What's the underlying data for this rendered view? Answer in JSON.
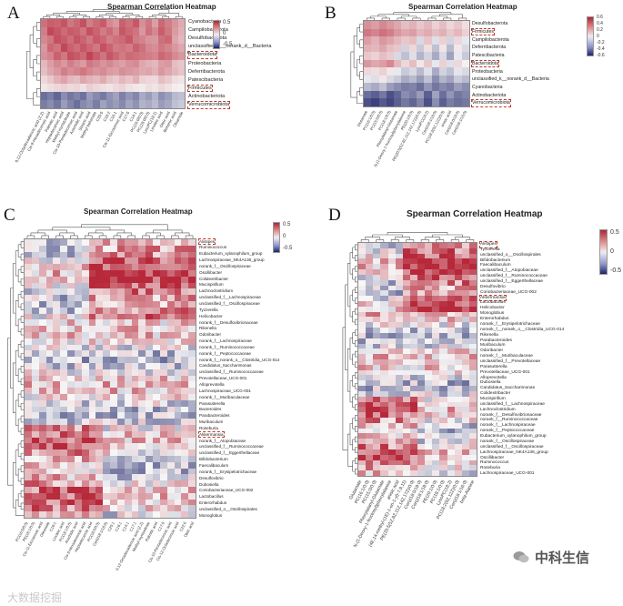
{
  "colors": {
    "pos": "#b2182b",
    "neg": "#1d2368",
    "neutral": "#f7f7f7",
    "highlight": "#c0392b"
  },
  "panels": {
    "A": {
      "label": "A",
      "title": "Spearman Correlation Heatmap",
      "legend": {
        "ticks": [
          "0.5",
          "0",
          "-0.5"
        ]
      },
      "rows": [
        "Cyanobacteria",
        "Campilobacterota",
        "Desulfobacterota",
        "unclassified_k__norank_d__Bacteria",
        "Bacteroidota",
        "Proteobacteria",
        "Deferribacterota",
        "Patescibacteria",
        "Firmicutes",
        "Actinobacteriota",
        "Verrucomicrobiota"
      ],
      "highlight_rows": [
        4,
        8,
        10
      ],
      "columns": [
        "9,12-Octadecadienoic acid (Z,Z)",
        "Cis-9-Hexadecenoic acid",
        "Palmitic acid",
        "Heptadecanoic acid",
        "Methyl myristoleate",
        "Cis-10-Pentadecenoic acid",
        "Arachidic acid",
        "Stearic acid",
        "Methyl behenate",
        "C20:0",
        "C18:2",
        "C16:1",
        "Cis-11-Eicosenoic acid",
        "C17:0",
        "C14:1",
        "PC(16:0/0:0)",
        "PC(18:0/0:0)",
        "LysoPC(18:1)",
        "Linoleic acid",
        "Oleic acid",
        "Behenic acid",
        "Oleamide"
      ],
      "values": [
        [
          0.42,
          0.48,
          0.46,
          0.51,
          0.4,
          0.45,
          0.52,
          0.38,
          0.44,
          0.49,
          0.35,
          0.3,
          0.47,
          0.42,
          0.5,
          0.33,
          0.4,
          0.28,
          0.45,
          0.38,
          0.31,
          0.24
        ],
        [
          0.38,
          0.55,
          0.5,
          0.44,
          0.49,
          0.47,
          0.41,
          0.52,
          0.46,
          0.39,
          0.44,
          0.36,
          0.5,
          0.45,
          0.41,
          0.3,
          0.42,
          0.35,
          0.48,
          0.4,
          0.29,
          0.22
        ],
        [
          0.35,
          0.4,
          0.52,
          0.48,
          0.43,
          0.51,
          0.46,
          0.4,
          0.49,
          0.45,
          0.38,
          0.42,
          0.44,
          0.5,
          0.39,
          0.36,
          0.31,
          0.3,
          0.42,
          0.45,
          0.26,
          0.2
        ],
        [
          0.3,
          0.45,
          0.41,
          0.55,
          0.47,
          0.43,
          0.5,
          0.45,
          0.4,
          0.52,
          0.46,
          0.39,
          0.41,
          0.38,
          0.47,
          0.42,
          0.35,
          0.33,
          0.4,
          0.36,
          0.3,
          0.25
        ],
        [
          0.32,
          0.36,
          0.47,
          0.4,
          0.52,
          0.49,
          0.44,
          0.56,
          0.48,
          0.41,
          0.5,
          0.45,
          0.39,
          0.44,
          0.42,
          0.4,
          0.38,
          0.36,
          0.45,
          0.41,
          0.34,
          0.3
        ],
        [
          0.2,
          0.28,
          0.35,
          0.3,
          0.38,
          0.33,
          0.29,
          0.4,
          0.36,
          0.31,
          0.35,
          0.3,
          0.27,
          0.32,
          0.34,
          0.25,
          0.22,
          0.2,
          0.28,
          0.3,
          0.18,
          0.15
        ],
        [
          0.18,
          0.25,
          0.3,
          0.38,
          0.33,
          0.36,
          0.4,
          0.35,
          0.31,
          0.34,
          0.29,
          0.27,
          0.33,
          0.3,
          0.28,
          0.24,
          0.26,
          0.22,
          0.3,
          0.25,
          0.2,
          0.16
        ],
        [
          0.1,
          0.15,
          0.22,
          0.26,
          0.2,
          0.18,
          0.25,
          0.21,
          0.19,
          0.24,
          0.17,
          0.14,
          0.2,
          0.16,
          0.22,
          0.12,
          0.1,
          0.09,
          0.18,
          0.14,
          0.08,
          0.06
        ],
        [
          0.05,
          0.08,
          0.1,
          0.12,
          0.09,
          0.11,
          0.07,
          0.13,
          0.1,
          0.08,
          0.06,
          0.09,
          0.11,
          0.07,
          0.05,
          0.04,
          0.08,
          0.06,
          0.1,
          0.07,
          0.03,
          0.02
        ],
        [
          -0.45,
          -0.4,
          -0.48,
          -0.35,
          -0.42,
          -0.38,
          -0.44,
          -0.3,
          -0.36,
          -0.41,
          -0.33,
          -0.28,
          -0.39,
          -0.32,
          -0.37,
          -0.25,
          -0.3,
          -0.22,
          -0.34,
          -0.29,
          -0.2,
          -0.18
        ],
        [
          -0.4,
          -0.35,
          -0.42,
          -0.3,
          -0.38,
          -0.45,
          -0.36,
          -0.32,
          -0.4,
          -0.28,
          -0.34,
          -0.3,
          -0.36,
          -0.27,
          -0.33,
          -0.22,
          -0.25,
          -0.2,
          -0.3,
          -0.26,
          -0.18,
          -0.15
        ]
      ]
    },
    "B": {
      "label": "B",
      "title": "Spearman Correlation Heatmap",
      "legend": {
        "ticks": [
          "0.6",
          "0.4",
          "0.2",
          "0",
          "-0.2",
          "-0.4",
          "-0.6"
        ]
      },
      "rows": [
        "Desulfobacterota",
        "Firmicutes",
        "Campilobacterota",
        "Deferribacterota",
        "Patescibacteria",
        "Bacteroidota",
        "Proteobacteria",
        "unclassified_k__norank_d__Bacteria",
        "Cyanobacteria",
        "Actinobacteriota",
        "Verrucomicrobiota"
      ],
      "highlight_rows": [
        1,
        5,
        10
      ],
      "columns": [
        "Glutamate",
        "PC(16:1/0:0)",
        "PC(15:0/0:0)",
        "PC(18:1/0:0)",
        "Phenylalanyl-Glutamate",
        "N-(1-Deoxy-1-fructosyl)phenylalanine",
        "PE(20:1/0:0)",
        "PE(20:5(5Z,8Z,11Z,14Z,17Z)/0:0)",
        "LysoPC(18:2)",
        "Cer(d18:1/18:0)",
        "PC(18:2(9Z,12Z)/0:0)",
        "anisic acid",
        "Cer(d18:0/18:0)",
        "Cer(d18:1/16:0)"
      ],
      "values": [
        [
          0.32,
          0.28,
          0.35,
          0.3,
          0.25,
          0.18,
          0.22,
          0.15,
          0.2,
          0.12,
          0.18,
          0.1,
          0.15,
          0.08
        ],
        [
          0.4,
          0.36,
          0.42,
          0.38,
          0.3,
          0.25,
          0.28,
          0.2,
          0.24,
          0.18,
          0.22,
          0.15,
          0.2,
          0.12
        ],
        [
          0.28,
          0.22,
          0.3,
          0.26,
          0.2,
          0.15,
          0.18,
          -0.1,
          0.16,
          -0.08,
          0.12,
          -0.12,
          0.1,
          -0.05
        ],
        [
          0.22,
          0.2,
          0.25,
          0.18,
          0.15,
          -0.12,
          0.1,
          -0.15,
          0.08,
          -0.18,
          0.06,
          -0.2,
          0.05,
          -0.1
        ],
        [
          0.15,
          0.12,
          0.18,
          0.14,
          -0.1,
          -0.18,
          -0.08,
          -0.22,
          -0.12,
          -0.25,
          -0.1,
          -0.28,
          -0.05,
          -0.15
        ],
        [
          0.3,
          0.25,
          0.28,
          0.35,
          0.2,
          0.1,
          0.18,
          0.05,
          0.15,
          -0.05,
          0.12,
          -0.08,
          0.1,
          0.02
        ],
        [
          0.1,
          0.08,
          0.12,
          0.05,
          -0.05,
          -0.15,
          -0.1,
          -0.2,
          -0.08,
          -0.25,
          -0.12,
          -0.18,
          -0.06,
          -0.1
        ],
        [
          -0.05,
          -0.08,
          0.05,
          -0.1,
          -0.15,
          -0.25,
          -0.2,
          -0.3,
          -0.18,
          -0.35,
          -0.22,
          -0.28,
          -0.15,
          -0.2
        ],
        [
          -0.2,
          -0.25,
          -0.18,
          -0.3,
          -0.35,
          -0.4,
          -0.38,
          -0.45,
          -0.32,
          -0.42,
          -0.36,
          -0.4,
          -0.3,
          -0.35
        ],
        [
          -0.45,
          -0.5,
          -0.42,
          -0.55,
          -0.48,
          -0.35,
          -0.4,
          -0.3,
          -0.5,
          -0.28,
          -0.45,
          -0.32,
          -0.42,
          -0.38
        ],
        [
          -0.55,
          -0.6,
          -0.52,
          -0.58,
          -0.5,
          -0.42,
          -0.48,
          -0.38,
          -0.55,
          -0.35,
          -0.5,
          -0.4,
          -0.45,
          -0.42
        ]
      ]
    },
    "C": {
      "label": "C",
      "title": "Spearman Correlation Heatmap",
      "legend": {
        "ticks": [
          "0.5",
          "0",
          "-0.5"
        ]
      },
      "rows": [
        "Alistipes",
        "Ruminococcus",
        "Eubacterium_xylanophilum_group",
        "Lachnospiraceae_NK4A136_group",
        "norank_f__Oscillospiraceae",
        "Oscillibacter",
        "Colidextribacter",
        "Mucispirillum",
        "Lachnoclostridium",
        "unclassified_f__Lachnospiraceae",
        "unclassified_f__Oscillospiraceae",
        "Tyzzerella",
        "Helicobacter",
        "norank_f__Desulfovibrionaceae",
        "Rikenella",
        "Odoribacter",
        "norank_f__Lachnospiraceae",
        "norank_f__Ruminococcaceae",
        "norank_f__Peptococcaceae",
        "norank_f__norank_o__Clostridia_UCG-014",
        "Candidatus_Saccharimonas",
        "unclassified_f__Ruminococcaceae",
        "Prevotellaceae_UCG-001",
        "Alloprevotella",
        "Lachnospiraceae_UCG-001",
        "norank_f__Muribaculaceae",
        "Parasutterella",
        "Bacteroides",
        "Parabacteroides",
        "Muribaculum",
        "Roseburia",
        "Akkermansia",
        "norank_f__Atopobiaceae",
        "unclassified_f__Ruminococcaceae",
        "unclassified_f__Eggerthellaceae",
        "Bifidobacterium",
        "Faecalibaculum",
        "norank_f__Erysipelotrichaceae",
        "Desulfovibrio",
        "Dubosiella",
        "Coriobacteriaceae_UCG-002",
        "Lactobacillus",
        "Enterorhabdus",
        "unclassified_o__Oscillospirales",
        "Monoglobus"
      ],
      "highlight_rows": [
        0,
        31
      ],
      "columns": [
        "PC(16:0/0:0)",
        "PE(18:1/0:0)",
        "Cis-11-Eicosenoic acid",
        "Oleamide",
        "C18:1",
        "Linoleic acid",
        "PC(18:1/0:0)",
        "Arachidic acid",
        "Cis-9-Hexadecenoic acid",
        "Heptadecanoic acid",
        "PC(18:0/0:0)",
        "Cer(d18:1/18:0)",
        "C20:1",
        "C16:1",
        "C14:1",
        "C17:1",
        "9,12-Octadecadienoic acid (Z,Z)",
        "Methyl myristoleate",
        "Palmitic acid",
        "C17:0",
        "Cis-10-Pentadecenoic acid",
        "Cis-12-Octadecenoic acid",
        "C22:0",
        "Oleic acid"
      ],
      "values": "generated"
    },
    "D": {
      "label": "D",
      "title": "Spearman Correlation Heatmap",
      "legend": {
        "ticks": [
          "0.5",
          "0",
          "-0.5"
        ]
      },
      "rows": [
        "Alistipes",
        "Tyzzerella",
        "unclassified_o__Oscillospirales",
        "Bifidobacterium",
        "Faecalibaculum",
        "unclassified_f__Atopobiaceae",
        "unclassified_f__Ruminococcaceae",
        "unclassified_f__Eggerthellaceae",
        "Desulfovibrio",
        "Coriobacteriaceae_UCG-002",
        "Akkermansia",
        "Lactobacillus",
        "Helicobacter",
        "Monoglobus",
        "Enterorhabdus",
        "norank_f__Erysipelotrichaceae",
        "norank_f__norank_o__Clostridia_UCG-014",
        "Rikenella",
        "Parabacteroides",
        "Muribaculum",
        "Odoribacter",
        "norank_f__Muribaculaceae",
        "unclassified_f__Prevotellaceae",
        "Parasutterella",
        "Prevotellaceae_UCG-001",
        "Alloprevotella",
        "Dubosiella",
        "Candidatus_Saccharimonas",
        "Colidextribacter",
        "Mucispirillum",
        "unclassified_f__Lachnospiraceae",
        "Lachnoclostridium",
        "norank_f__Desulfovibrionaceae",
        "norank_f__Ruminococcaceae",
        "norank_f__Lachnospiraceae",
        "norank_f__Peptococcaceae",
        "Eubacterium_xylanophilum_group",
        "norank_f__Oscillospiraceae",
        "unclassified_f__Oscillospiraceae",
        "Lachnospiraceae_NK4A136_group",
        "Oscillibacter",
        "Ruminococcus",
        "Roseburia",
        "Lachnospiraceae_UCG-001"
      ],
      "highlight_rows": [
        0,
        10
      ],
      "columns": [
        "Glutamate",
        "PC(16:1/0:0)",
        "PC(15:0/0:0)",
        "Phenylalanyl-Glutamate",
        "N-(1-Deoxy-1-fructosyl)phenylalanine",
        "anisic acid",
        "(4E,14-methyl-(1E)-1-en-1-yl)-7,9,11)",
        "PE(20:5(5Z,8Z,11Z,14Z,17Z)/0:0)",
        "Cer(d18:0/18:0)",
        "Cer(d18:1/18:0)",
        "PE(20:1/0:0)",
        "PC(18:1/0:0)",
        "LysoPC(18:2)",
        "PC(18:2(9Z,12Z)/0:0)",
        "Cer(d18:1/16:0)",
        "beta-Alanine"
      ],
      "values": "generated"
    }
  },
  "watermark": {
    "left": "大数据挖掘",
    "right": "中科生信"
  }
}
